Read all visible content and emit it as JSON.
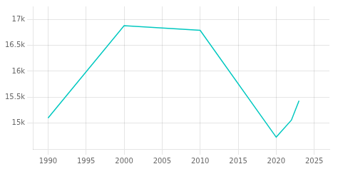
{
  "chart_data": {
    "type": "line",
    "x": [
      1990,
      2000,
      2010,
      2020,
      2022,
      2023
    ],
    "values": [
      15098,
      16880,
      16788,
      14729,
      15058,
      15431
    ],
    "color": "#00c8c0",
    "xlim": [
      1988,
      2027
    ],
    "xticks": [
      1990,
      1995,
      2000,
      2005,
      2010,
      2015,
      2020,
      2025
    ],
    "ylim": [
      14500,
      17250
    ],
    "yticks": [
      {
        "value": 15000,
        "label": "15k"
      },
      {
        "value": 15500,
        "label": "15.5k"
      },
      {
        "value": 16000,
        "label": "16k"
      },
      {
        "value": 16500,
        "label": "16.5k"
      },
      {
        "value": 17000,
        "label": "17k"
      }
    ],
    "grid": true
  }
}
